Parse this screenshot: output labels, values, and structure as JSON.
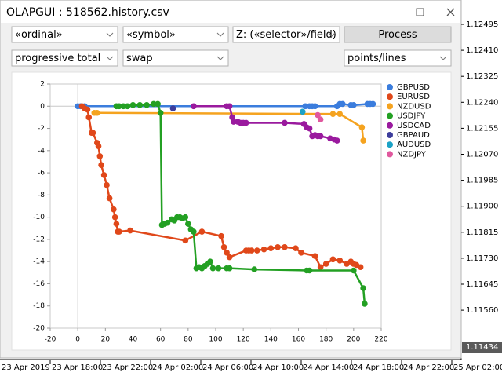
{
  "window": {
    "title": "OLAPGUI : 518562.history.csv"
  },
  "controls": {
    "x_field": "«ordinal»",
    "y_field": "«symbol»",
    "z_field": "Z: («selector»/field)",
    "process": "Process",
    "aggregator": "progressive total",
    "field": "swap",
    "chart_mode": "points/lines"
  },
  "chart_data": {
    "type": "scatter",
    "lines": true,
    "xlim": [
      -20,
      220
    ],
    "xticks": [
      -20,
      0,
      20,
      40,
      60,
      80,
      100,
      120,
      140,
      160,
      180,
      200,
      220
    ],
    "ylim": [
      -20,
      2
    ],
    "yticks": [
      2,
      0,
      -2,
      -4,
      -6,
      -8,
      -10,
      -12,
      -14,
      -16,
      -18,
      -20
    ],
    "series": [
      {
        "name": "GBPUSD",
        "color": "#3b7ddd",
        "x": [
          0,
          2,
          5,
          165,
          168,
          170,
          172,
          188,
          190,
          192,
          198,
          200,
          210,
          212,
          214
        ],
        "values": [
          0,
          0,
          0,
          0,
          0,
          0,
          0,
          0,
          0.2,
          0.2,
          0.1,
          0.1,
          0.2,
          0.2,
          0.2
        ]
      },
      {
        "name": "EURUSD",
        "color": "#e0481a",
        "x": [
          3,
          5,
          7,
          8,
          10,
          11,
          14,
          15,
          16,
          17,
          19,
          21,
          23,
          26,
          27,
          28,
          29,
          30,
          38,
          78,
          90,
          104,
          106,
          108,
          110,
          122,
          124,
          126,
          130,
          135,
          140,
          145,
          150,
          158,
          162,
          172,
          176,
          180,
          185,
          190,
          195,
          198,
          200,
          202,
          205
        ],
        "values": [
          0,
          -0.2,
          -0.3,
          -1,
          -2.4,
          -2.4,
          -3.3,
          -3.6,
          -4.5,
          -5.3,
          -6.2,
          -7.1,
          -8.3,
          -9.3,
          -10,
          -10.6,
          -11.3,
          -11.3,
          -11.2,
          -12.1,
          -11.3,
          -11.7,
          -12.7,
          -13.2,
          -13.6,
          -13,
          -13,
          -13,
          -13,
          -12.9,
          -12.8,
          -12.7,
          -12.7,
          -12.8,
          -13.2,
          -13.5,
          -14.5,
          -14.2,
          -13.8,
          -13.9,
          -14.2,
          -14,
          -14.2,
          -14.3,
          -14.5
        ]
      },
      {
        "name": "NZDUSD",
        "color": "#f5a31f",
        "x": [
          12,
          14,
          185,
          190,
          206,
          207
        ],
        "values": [
          -0.6,
          -0.6,
          -0.7,
          -0.7,
          -1.9,
          -3.1
        ]
      },
      {
        "name": "USDJPY",
        "color": "#23a023",
        "x": [
          28,
          30,
          33,
          36,
          40,
          45,
          50,
          55,
          58,
          60,
          61,
          63,
          65,
          68,
          70,
          72,
          74,
          76,
          78,
          80,
          82,
          84,
          86,
          88,
          90,
          92,
          94,
          96,
          98,
          102,
          108,
          110,
          128,
          166,
          168,
          200,
          207,
          208
        ],
        "values": [
          0,
          0,
          0,
          0,
          0.1,
          0.1,
          0.1,
          0.2,
          0.2,
          -0.6,
          -10.7,
          -10.6,
          -10.5,
          -10.2,
          -10.3,
          -10,
          -10,
          -10.1,
          -10,
          -10.6,
          -11.1,
          -11.3,
          -14.6,
          -14.5,
          -14.6,
          -14.4,
          -14.2,
          -14,
          -14.6,
          -14.6,
          -14.6,
          -14.6,
          -14.7,
          -14.8,
          -14.8,
          -14.8,
          -16.4,
          -17.8
        ]
      },
      {
        "name": "USDCAD",
        "color": "#9a1a9e",
        "x": [
          84,
          108,
          110,
          112,
          113,
          116,
          118,
          120,
          122,
          150,
          164,
          166,
          168,
          170,
          172,
          174,
          176,
          183,
          186,
          188
        ],
        "values": [
          0,
          0,
          0,
          -1,
          -1.4,
          -1.4,
          -1.5,
          -1.5,
          -1.5,
          -1.5,
          -1.6,
          -1.9,
          -2,
          -2.7,
          -2.6,
          -2.7,
          -2.7,
          -2.9,
          -3,
          -3.1
        ]
      },
      {
        "name": "GBPAUD",
        "color": "#3d3d9c",
        "x": [
          69
        ],
        "values": [
          -0.2
        ]
      },
      {
        "name": "AUDUSD",
        "color": "#1ba2c6",
        "x": [
          163
        ],
        "values": [
          -0.5
        ]
      },
      {
        "name": "NZDJPY",
        "color": "#e0589e",
        "x": [
          174,
          176
        ],
        "values": [
          -0.8,
          -1.2
        ]
      }
    ]
  },
  "terminal": {
    "price_labels": [
      "1.12495",
      "1.12410",
      "1.12325",
      "1.12240",
      "1.12155",
      "1.12070",
      "1.11985",
      "1.11900",
      "1.11815",
      "1.11730",
      "1.11645",
      "1.11560"
    ],
    "current_price": "1.11434",
    "time_labels": [
      "23 Apr 2019",
      "23 Apr 18:00",
      "23 Apr 22:00",
      "24 Apr 02:00",
      "24 Apr 06:00",
      "24 Apr 10:00",
      "24 Apr 14:00",
      "24 Apr 18:00",
      "24 Apr 22:00",
      "25 Apr 02:00"
    ]
  }
}
